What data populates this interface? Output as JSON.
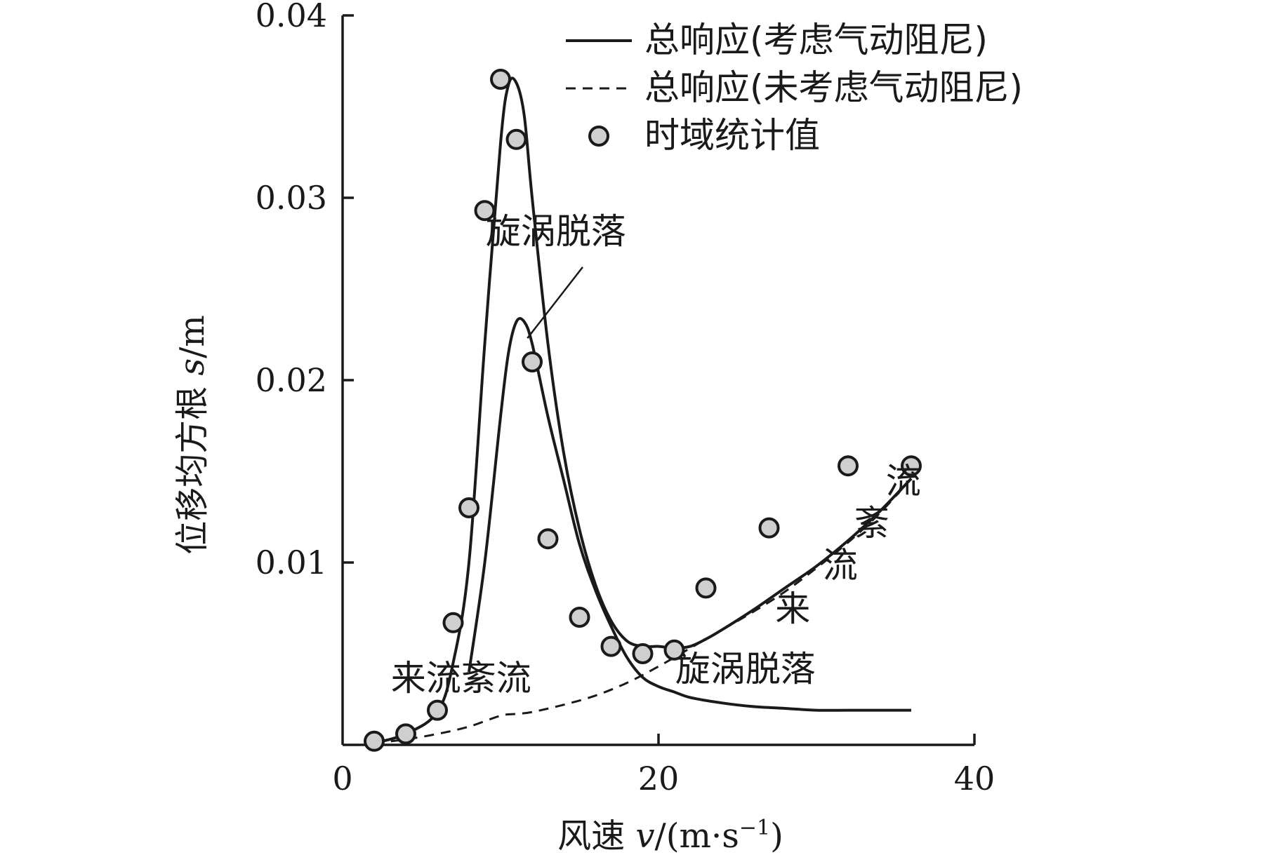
{
  "chart_data": {
    "type": "line",
    "title": "",
    "xlabel": "风速 v/(m·s⁻¹)",
    "xlabel_parts": {
      "prefix": "风速 ",
      "var": "v",
      "rest": "/(m·s",
      "sup": "−1",
      "close": ")"
    },
    "ylabel": "位移均方根 s/m",
    "ylabel_parts": {
      "prefix": "位移均方根 ",
      "var": "s",
      "rest": "/m"
    },
    "xlim": [
      0,
      40
    ],
    "ylim": [
      0,
      0.04
    ],
    "x_ticks": [
      0,
      20,
      40
    ],
    "x_tick_labels": [
      "0",
      "20",
      "40"
    ],
    "y_ticks": [
      0.01,
      0.02,
      0.03,
      0.04
    ],
    "y_tick_labels": [
      "0.01",
      "0.02",
      "0.03",
      "0.04"
    ],
    "grid": false,
    "legend_position": "top-right",
    "series": [
      {
        "name": "总响应(考虑气动阻尼)",
        "style": "solid",
        "x": [
          2,
          4,
          6,
          7,
          8,
          9,
          10,
          10.5,
          11,
          11.5,
          12,
          13,
          14,
          15,
          16,
          17,
          18,
          19,
          20,
          21,
          22,
          23,
          24,
          26,
          28,
          30,
          32,
          34,
          36
        ],
        "y": [
          0.0001,
          0.0006,
          0.0018,
          0.0045,
          0.01,
          0.022,
          0.033,
          0.0362,
          0.0363,
          0.0345,
          0.03,
          0.022,
          0.016,
          0.0118,
          0.0088,
          0.0068,
          0.0057,
          0.0054,
          0.0054,
          0.0053,
          0.0054,
          0.0058,
          0.0063,
          0.0074,
          0.0086,
          0.0098,
          0.0112,
          0.0128,
          0.0146
        ]
      },
      {
        "name": "总响应(未考虑气动阻尼)",
        "style": "dashed",
        "x": [
          2,
          4,
          6,
          8,
          10,
          11,
          12,
          14,
          16,
          18,
          20,
          22,
          24,
          26,
          28,
          30,
          32,
          34,
          36
        ],
        "y": [
          0.0001,
          0.0003,
          0.0006,
          0.001,
          0.0016,
          0.0017,
          0.0018,
          0.0022,
          0.0027,
          0.0034,
          0.0043,
          0.0053,
          0.0063,
          0.0073,
          0.0084,
          0.0097,
          0.0111,
          0.0127,
          0.0146
        ]
      },
      {
        "name": "时域统计值",
        "style": "marker",
        "x": [
          2,
          4,
          6,
          7,
          8,
          9,
          10,
          11,
          12,
          13,
          15,
          17,
          19,
          21,
          23,
          27,
          32,
          36
        ],
        "y": [
          0.0002,
          0.0006,
          0.0019,
          0.0067,
          0.013,
          0.0293,
          0.0365,
          0.0332,
          0.021,
          0.0113,
          0.007,
          0.0054,
          0.005,
          0.0052,
          0.0086,
          0.0119,
          0.0153,
          0.0153
        ]
      }
    ],
    "component_curves": [
      {
        "label": "旋涡脱落",
        "x": [
          8,
          9,
          10,
          10.5,
          11,
          11.5,
          12,
          13,
          14,
          15,
          16,
          17,
          18,
          19,
          20,
          21,
          22,
          24,
          26,
          28,
          30,
          32,
          34,
          36
        ],
        "y": [
          0.004,
          0.01,
          0.018,
          0.0215,
          0.0232,
          0.0232,
          0.022,
          0.018,
          0.0145,
          0.011,
          0.0085,
          0.0065,
          0.0048,
          0.0037,
          0.0032,
          0.0029,
          0.0026,
          0.0023,
          0.0021,
          0.002,
          0.0019,
          0.0019,
          0.0019,
          0.0019
        ]
      }
    ],
    "annotations": [
      {
        "text": "旋涡脱落",
        "x": 13.5,
        "y": 0.0275
      },
      {
        "text": "旋涡脱落",
        "x": 25.5,
        "y": 0.0035
      },
      {
        "text": "来流紊流",
        "x": 7.5,
        "y": 0.003
      },
      {
        "text": "来",
        "x": 28.5,
        "y": 0.0068
      },
      {
        "text": "流",
        "x": 31.5,
        "y": 0.0092
      },
      {
        "text": "紊",
        "x": 33.5,
        "y": 0.0115
      },
      {
        "text": "流",
        "x": 35.5,
        "y": 0.0138
      }
    ]
  }
}
